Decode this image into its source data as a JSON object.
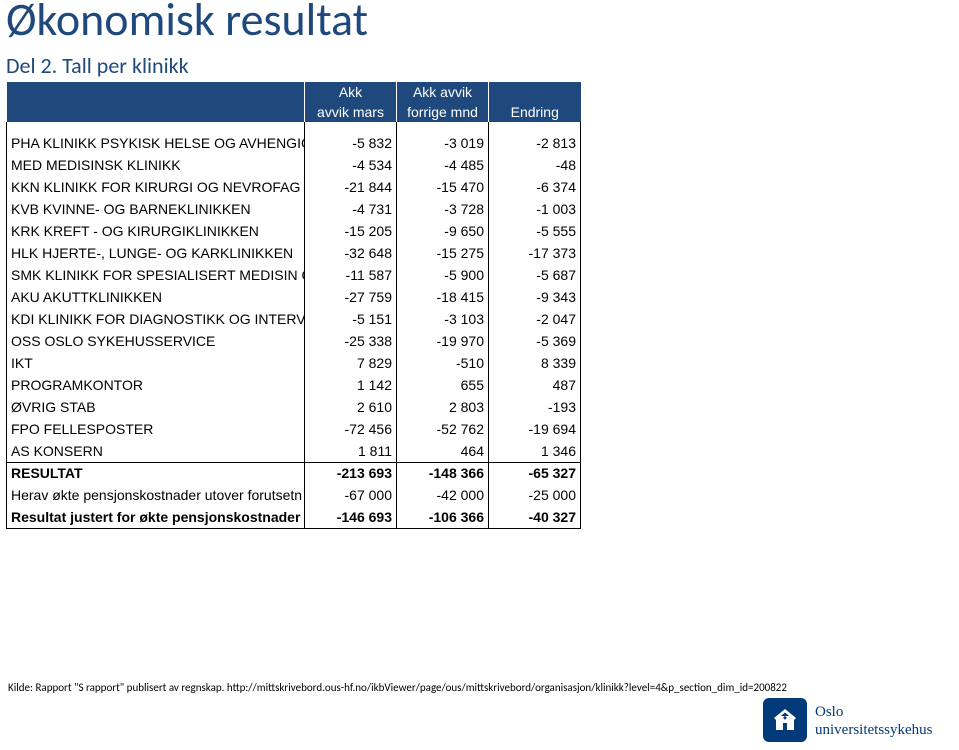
{
  "heading": "Økonomisk resultat",
  "subheading": "Del 2. Tall per klinikk",
  "colors": {
    "heading": "#1f497d",
    "table_header_bg": "#1f497d",
    "table_header_fg": "#ffffff",
    "grid": "#000000",
    "logo_primary": "#003a78"
  },
  "table": {
    "header_row1": [
      "",
      "Akk",
      "Akk avvik",
      ""
    ],
    "header_row2": [
      "",
      "avvik mars",
      "forrige mnd",
      "Endring"
    ],
    "rows": [
      {
        "label": "PHA KLINIKK PSYKISK HELSE OG AVHENGIGHET",
        "v": [
          "-5 832",
          "-3 019",
          "-2 813"
        ]
      },
      {
        "label": "MED MEDISINSK KLINIKK",
        "v": [
          "-4 534",
          "-4 485",
          "-48"
        ]
      },
      {
        "label": "KKN KLINIKK FOR KIRURGI OG NEVROFAG",
        "v": [
          "-21 844",
          "-15 470",
          "-6 374"
        ]
      },
      {
        "label": "KVB KVINNE- OG BARNEKLINIKKEN",
        "v": [
          "-4 731",
          "-3 728",
          "-1 003"
        ]
      },
      {
        "label": "KRK KREFT - OG KIRURGIKLINIKKEN",
        "v": [
          "-15 205",
          "-9 650",
          "-5 555"
        ]
      },
      {
        "label": "HLK HJERTE-, LUNGE- OG KARKLINIKKEN",
        "v": [
          "-32 648",
          "-15 275",
          "-17 373"
        ]
      },
      {
        "label": "SMK KLINIKK FOR SPESIALISERT MEDISIN OG",
        "v": [
          "-11 587",
          "-5 900",
          "-5 687"
        ]
      },
      {
        "label": "AKU AKUTTKLINIKKEN",
        "v": [
          "-27 759",
          "-18 415",
          "-9 343"
        ]
      },
      {
        "label": "KDI KLINIKK FOR DIAGNOSTIKK OG INTERVEN",
        "v": [
          "-5 151",
          "-3 103",
          "-2 047"
        ]
      },
      {
        "label": "OSS OSLO SYKEHUSSERVICE",
        "v": [
          "-25 338",
          "-19 970",
          "-5 369"
        ]
      },
      {
        "label": "IKT",
        "v": [
          "7 829",
          "-510",
          "8 339"
        ]
      },
      {
        "label": "PROGRAMKONTOR",
        "v": [
          "1 142",
          "655",
          "487"
        ]
      },
      {
        "label": "ØVRIG STAB",
        "v": [
          "2 610",
          "2 803",
          "-193"
        ]
      },
      {
        "label": "FPO FELLESPOSTER",
        "v": [
          "-72 456",
          "-52 762",
          "-19 694"
        ]
      },
      {
        "label": "AS KONSERN",
        "v": [
          "1 811",
          "464",
          "1 346"
        ]
      }
    ],
    "summary": [
      {
        "label": "RESULTAT",
        "v": [
          "-213 693",
          "-148 366",
          "-65 327"
        ],
        "bold": true
      },
      {
        "label": "Herav økte pensjonskostnader utover forutsetn",
        "v": [
          "-67 000",
          "-42 000",
          "-25 000"
        ],
        "bold": false
      },
      {
        "label": "Resultat justert for økte pensjonskostnader",
        "v": [
          "-146 693",
          "-106 366",
          "-40 327"
        ],
        "bold": true
      }
    ]
  },
  "source_line": "Kilde: Rapport \"S rapport\" publisert av regnskap. http://mittskrivebord.ous-hf.no/ikbViewer/page/ous/mittskrivebord/organisasjon/klinikk?level=4&p_section_dim_id=200822",
  "logo": {
    "line1": "Oslo",
    "line2": "universitetssykehus"
  }
}
